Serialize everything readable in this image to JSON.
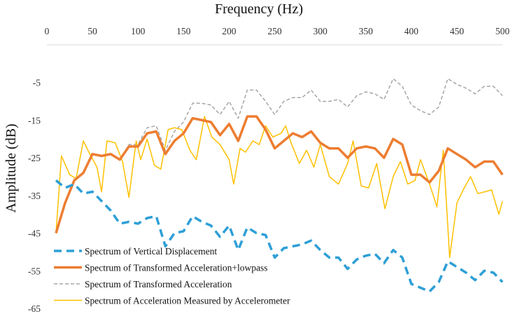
{
  "chart_data": {
    "type": "line",
    "title": "",
    "xlabel": "Frequency (Hz)",
    "ylabel": "Amplitude (dB)",
    "xlim": [
      0,
      500
    ],
    "ylim": [
      -65,
      5
    ],
    "x_ticks": [
      0,
      50,
      100,
      150,
      200,
      250,
      300,
      350,
      400,
      450,
      500
    ],
    "y_ticks": [
      -5,
      -15,
      -25,
      -35,
      -45,
      -55,
      -65
    ],
    "x_tick_labels": [
      "0",
      "50",
      "100",
      "150",
      "200",
      "250",
      "300",
      "350",
      "400",
      "450",
      "500"
    ],
    "y_tick_labels": [
      "-5",
      "-15",
      "-25",
      "-35",
      "-45",
      "-55",
      "-65"
    ],
    "x_axis_position": "top",
    "grid": false,
    "legend_position": "bottom-left",
    "series": [
      {
        "name": "Spectrum of Vertical Displacement",
        "color": "#2e9fd6",
        "style": "dashed",
        "weight": "thick",
        "x": [
          10,
          20,
          30,
          40,
          50,
          60,
          70,
          80,
          90,
          100,
          110,
          120,
          130,
          140,
          150,
          160,
          170,
          180,
          190,
          200,
          210,
          220,
          230,
          240,
          250,
          260,
          270,
          280,
          290,
          300,
          310,
          320,
          330,
          340,
          350,
          360,
          370,
          380,
          390,
          400,
          410,
          420,
          430,
          440,
          450,
          460,
          470,
          480,
          490,
          500
        ],
        "y": [
          -31,
          -33,
          -32,
          -34.5,
          -34,
          -36.5,
          -39,
          -42.5,
          -42,
          -42.5,
          -41,
          -40.5,
          -48.5,
          -45,
          -44.5,
          -40.5,
          -42,
          -43,
          -46,
          -43,
          -49.5,
          -43.5,
          -45,
          -45.5,
          -51.5,
          -49,
          -48.5,
          -48,
          -47,
          -49.5,
          -51.5,
          -51.5,
          -54.5,
          -52,
          -51,
          -50.5,
          -53,
          -49.5,
          -51.5,
          -58.5,
          -59.5,
          -60.5,
          -58,
          -52.5,
          -54,
          -55.5,
          -57.5,
          -55,
          -55.5,
          -58
        ]
      },
      {
        "name": "Spectrum of Transformed Acceleration+lowpass",
        "color": "#ed7d31",
        "style": "solid",
        "weight": "thick",
        "x": [
          10,
          20,
          30,
          40,
          50,
          60,
          70,
          80,
          90,
          100,
          110,
          120,
          130,
          140,
          150,
          160,
          170,
          180,
          190,
          200,
          210,
          220,
          230,
          240,
          250,
          260,
          270,
          280,
          290,
          300,
          310,
          320,
          330,
          340,
          350,
          360,
          370,
          380,
          390,
          400,
          410,
          420,
          430,
          440,
          450,
          460,
          470,
          480,
          490,
          500
        ],
        "y": [
          -45,
          -37,
          -31,
          -29,
          -24,
          -24.5,
          -24,
          -25.5,
          -22,
          -22,
          -18.5,
          -18,
          -24,
          -20.5,
          -18.5,
          -14.5,
          -15,
          -15.5,
          -19,
          -16,
          -20.5,
          -14,
          -14,
          -17.5,
          -22.5,
          -20.5,
          -18.5,
          -19.5,
          -18,
          -21,
          -22.5,
          -22.5,
          -25,
          -22.5,
          -22,
          -22.5,
          -25,
          -20,
          -21.5,
          -29.5,
          -29.5,
          -31.5,
          -28.5,
          -22.5,
          -24,
          -25.5,
          -27.5,
          -26,
          -26,
          -29.5
        ]
      },
      {
        "name": "Spectrum of Transformed Acceleration",
        "color": "#a6a6a6",
        "style": "dashed",
        "weight": "thin",
        "x": [
          10,
          20,
          30,
          40,
          50,
          60,
          70,
          80,
          90,
          100,
          110,
          120,
          130,
          140,
          150,
          160,
          170,
          180,
          190,
          200,
          210,
          220,
          230,
          240,
          250,
          260,
          270,
          280,
          290,
          300,
          310,
          320,
          330,
          340,
          350,
          360,
          370,
          380,
          390,
          400,
          410,
          420,
          430,
          440,
          450,
          460,
          470,
          480,
          490,
          500
        ],
        "y": [
          -45,
          -37,
          -31,
          -29,
          -24,
          -24.5,
          -24,
          -25.5,
          -21.5,
          -21.5,
          -17,
          -16.5,
          -23,
          -18,
          -15.5,
          -10.5,
          -10.5,
          -11,
          -13.5,
          -10,
          -14.5,
          -7,
          -7,
          -10,
          -13.5,
          -10,
          -9,
          -9,
          -7,
          -10,
          -10,
          -9.5,
          -11.5,
          -8.5,
          -7.5,
          -8,
          -9.5,
          -4,
          -6,
          -11,
          -12.5,
          -13.5,
          -11.5,
          -4,
          -5.5,
          -6.5,
          -8,
          -6,
          -6,
          -8.5
        ]
      },
      {
        "name": "Spectrum of Acceleration Measured by Accelerometer",
        "color": "#ffc000",
        "style": "solid",
        "weight": "thin",
        "x": [
          10,
          16,
          25,
          32,
          40,
          45,
          55,
          60,
          66,
          75,
          83,
          90,
          98,
          103,
          110,
          118,
          125,
          133,
          140,
          148,
          157,
          164,
          173,
          181,
          190,
          200,
          205,
          212,
          218,
          226,
          233,
          240,
          248,
          257,
          262,
          268,
          277,
          285,
          293,
          300,
          310,
          320,
          330,
          336,
          345,
          353,
          362,
          371,
          380,
          388,
          396,
          404,
          410,
          420,
          428,
          435,
          442,
          450,
          458,
          465,
          473,
          481,
          488,
          496,
          500
        ],
        "y": [
          -45,
          -24.5,
          -29.5,
          -30.5,
          -20.5,
          -23,
          -27.5,
          -34,
          -20.5,
          -21,
          -26,
          -35.5,
          -20.5,
          -25.5,
          -20,
          -27,
          -28,
          -17.5,
          -17,
          -17.5,
          -23,
          -25.5,
          -14,
          -19.5,
          -21.5,
          -25.5,
          -32,
          -22.5,
          -23.5,
          -20.5,
          -21.5,
          -16.5,
          -19.5,
          -18.5,
          -16.5,
          -21,
          -26.5,
          -23,
          -27.5,
          -21.5,
          -30,
          -32,
          -26.5,
          -20.5,
          -32.5,
          -33,
          -26.5,
          -38.5,
          -30,
          -26,
          -32,
          -31,
          -25.5,
          -32,
          -38,
          -23,
          -51.5,
          -37,
          -33,
          -30,
          -34.5,
          -34,
          -33.5,
          -40,
          -36.5
        ]
      }
    ]
  }
}
